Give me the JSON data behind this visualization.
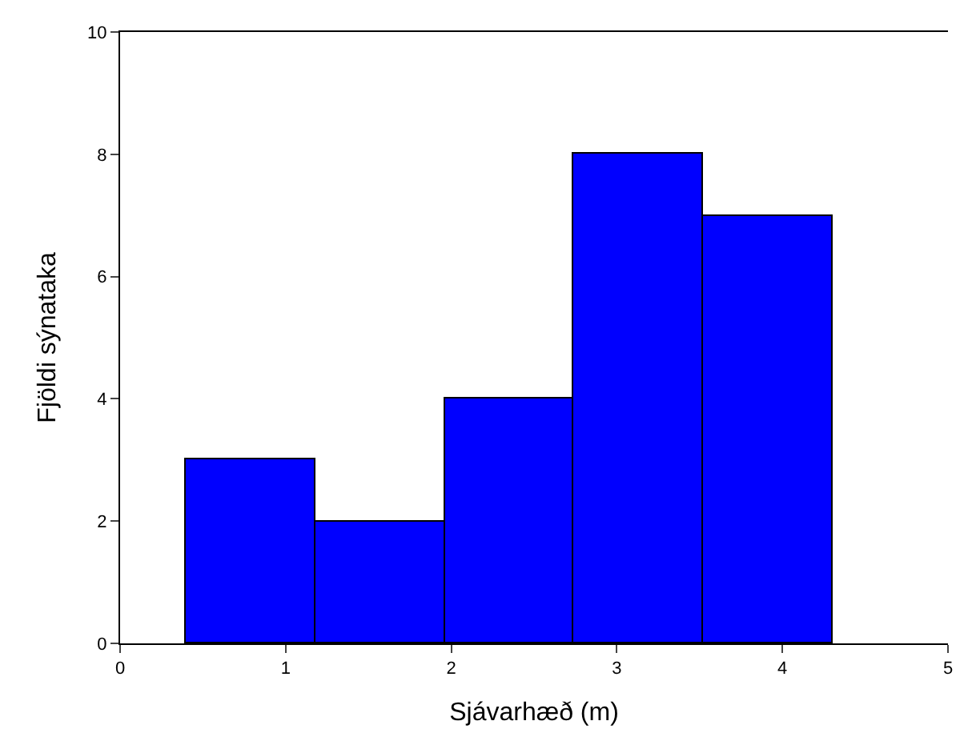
{
  "chart_data": {
    "type": "histogram",
    "xlabel": "Sjávarhæð (m)",
    "ylabel": "Fjöldi sýnataka",
    "bins": [
      0.4,
      1.18,
      1.96,
      2.74,
      3.52,
      4.3
    ],
    "values": [
      3,
      2,
      4,
      8,
      7
    ],
    "color": "#0000ff",
    "xlim": [
      0,
      5
    ],
    "xticks": [
      0,
      1,
      2,
      3,
      4,
      5
    ],
    "ylim": [
      0,
      10
    ],
    "yticks": [
      0,
      2,
      4,
      6,
      8,
      10
    ]
  }
}
